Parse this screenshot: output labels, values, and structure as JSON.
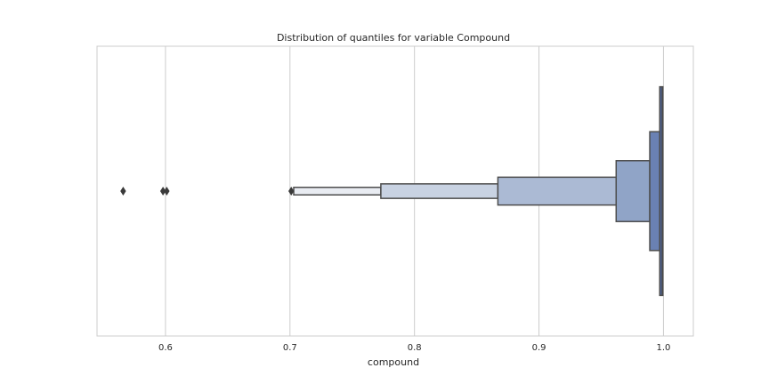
{
  "chart_data": {
    "type": "boxen",
    "orientation": "horizontal",
    "title": "Distribution of quantiles for variable Compound",
    "xlabel": "compound",
    "ylabel": "",
    "xlim": [
      0.545,
      1.024
    ],
    "ylim": [
      -0.5,
      0.5
    ],
    "xticks": [
      0.6,
      0.7,
      0.8,
      0.9,
      1.0
    ],
    "xtick_labels": [
      "0.6",
      "0.7",
      "0.8",
      "0.9",
      "1.0"
    ],
    "grid": true,
    "median": 0.999,
    "letter_values": [
      {
        "low": 0.997,
        "high": 0.9995,
        "half_height": 0.36,
        "color": "#4c6399"
      },
      {
        "low": 0.989,
        "high": 0.997,
        "half_height": 0.205,
        "color": "#6a81b3"
      },
      {
        "low": 0.962,
        "high": 0.989,
        "half_height": 0.105,
        "color": "#90a4c7"
      },
      {
        "low": 0.867,
        "high": 0.962,
        "half_height": 0.048,
        "color": "#abbad4"
      },
      {
        "low": 0.773,
        "high": 0.867,
        "half_height": 0.025,
        "color": "#c8d2e2"
      },
      {
        "low": 0.703,
        "high": 0.773,
        "half_height": 0.013,
        "color": "#e9ecf2"
      }
    ],
    "outliers": [
      0.566,
      0.598,
      0.601,
      0.701
    ],
    "colors": {
      "edge": "#4d4d4d",
      "grid": "#cccccc",
      "frame": "#cccccc",
      "outlier": "#3a3a3a"
    }
  }
}
